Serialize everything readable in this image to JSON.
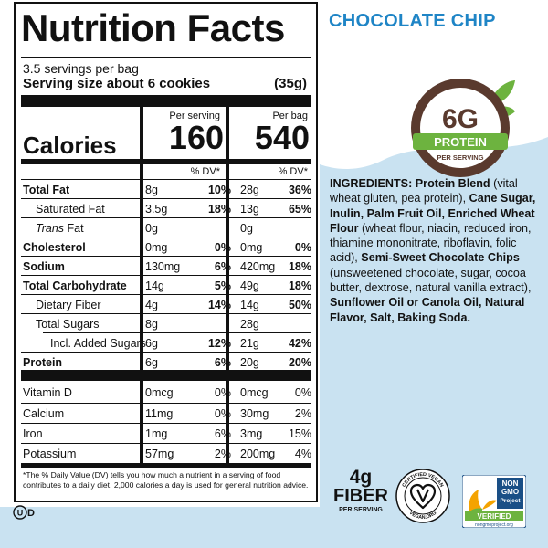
{
  "product": {
    "flavor": "CHOCOLATE CHIP",
    "badge": {
      "protein_amount": "6G",
      "protein_label": "PROTEIN",
      "protein_sub": "PER SERVING"
    },
    "fiber": {
      "amount": "4g",
      "label": "FIBER",
      "sub": "PER SERVING"
    },
    "certifications": {
      "vegan": {
        "top": "CERTIFIED VEGAN",
        "bottom": "VEGAN.ORG"
      },
      "nongmo": {
        "line1": "NON",
        "line2": "GMO",
        "line3": "Project",
        "line4": "VERIFIED",
        "line5": "nongmoproject.org"
      },
      "kosher": "UD"
    }
  },
  "nutrition": {
    "title": "Nutrition Facts",
    "servings": "3.5 servings per bag",
    "serving_size_label": "Serving size about 6 cookies",
    "serving_size_grams": "(35g)",
    "per_serving_label": "Per serving",
    "per_bag_label": "Per bag",
    "calories_label": "Calories",
    "calories_serving": "160",
    "calories_bag": "540",
    "dv_header": "% DV*",
    "rows": [
      {
        "label": "Total Fat",
        "style": "bold",
        "amt1": "8g",
        "dv1": "10%",
        "amt2": "28g",
        "dv2": "36%"
      },
      {
        "label": "Saturated Fat",
        "style": "ind1",
        "amt1": "3.5g",
        "dv1": "18%",
        "amt2": "13g",
        "dv2": "65%"
      },
      {
        "label": "Trans",
        "label_suffix": " Fat",
        "style": "ind1-it",
        "amt1": "0g",
        "dv1": "",
        "amt2": "0g",
        "dv2": ""
      },
      {
        "label": "Cholesterol",
        "style": "bold",
        "amt1": "0mg",
        "dv1": "0%",
        "amt2": "0mg",
        "dv2": "0%"
      },
      {
        "label": "Sodium",
        "style": "bold",
        "amt1": "130mg",
        "dv1": "6%",
        "amt2": "420mg",
        "dv2": "18%"
      },
      {
        "label": "Total Carbohydrate",
        "style": "bold",
        "amt1": "14g",
        "dv1": "5%",
        "amt2": "49g",
        "dv2": "18%"
      },
      {
        "label": "Dietary Fiber",
        "style": "ind1",
        "amt1": "4g",
        "dv1": "14%",
        "amt2": "14g",
        "dv2": "50%"
      },
      {
        "label": "Total Sugars",
        "style": "ind1",
        "amt1": "8g",
        "dv1": "",
        "amt2": "28g",
        "dv2": ""
      },
      {
        "label": "Incl. Added Sugars",
        "style": "ind2",
        "amt1": "6g",
        "dv1": "12%",
        "amt2": "21g",
        "dv2": "42%"
      },
      {
        "label": "Protein",
        "style": "bold",
        "amt1": "6g",
        "dv1": "6%",
        "amt2": "20g",
        "dv2": "20%"
      }
    ],
    "vitamins": [
      {
        "label": "Vitamin D",
        "amt1": "0mcg",
        "dv1": "0%",
        "amt2": "0mcg",
        "dv2": "0%"
      },
      {
        "label": "Calcium",
        "amt1": "11mg",
        "dv1": "0%",
        "amt2": "30mg",
        "dv2": "2%"
      },
      {
        "label": "Iron",
        "amt1": "1mg",
        "dv1": "6%",
        "amt2": "3mg",
        "dv2": "15%"
      },
      {
        "label": "Potassium",
        "amt1": "57mg",
        "dv1": "2%",
        "amt2": "200mg",
        "dv2": "4%"
      }
    ],
    "footnote": "*The % Daily Value (DV) tells you how much a nutrient in a serving of food contributes to a daily diet. 2,000 calories a day is used for general nutrition advice."
  },
  "ingredients": {
    "label": "INGREDIENTS:",
    "parts": [
      {
        "t": " Protein Blend",
        "b": true
      },
      {
        "t": " (vital wheat gluten, pea protein), ",
        "b": false
      },
      {
        "t": "Cane Sugar, Inulin, Palm Fruit Oil, Enriched Wheat Flour",
        "b": true
      },
      {
        "t": " (wheat flour, niacin, reduced iron, thiamine mononitrate, riboflavin, folic acid), ",
        "b": false
      },
      {
        "t": "Semi-Sweet Chocolate Chips",
        "b": true
      },
      {
        "t": " (unsweetened chocolate, sugar, cocoa butter, dextrose, natural vanilla extract), ",
        "b": false
      },
      {
        "t": "Sunflower Oil or Canola Oil, Natural Flavor, Salt, Baking Soda.",
        "b": true
      }
    ]
  },
  "colors": {
    "brand_blue": "#1f85c6",
    "bg_blue": "#c9e2f1",
    "badge_brown": "#5a3a2e",
    "badge_green": "#6db33f"
  }
}
